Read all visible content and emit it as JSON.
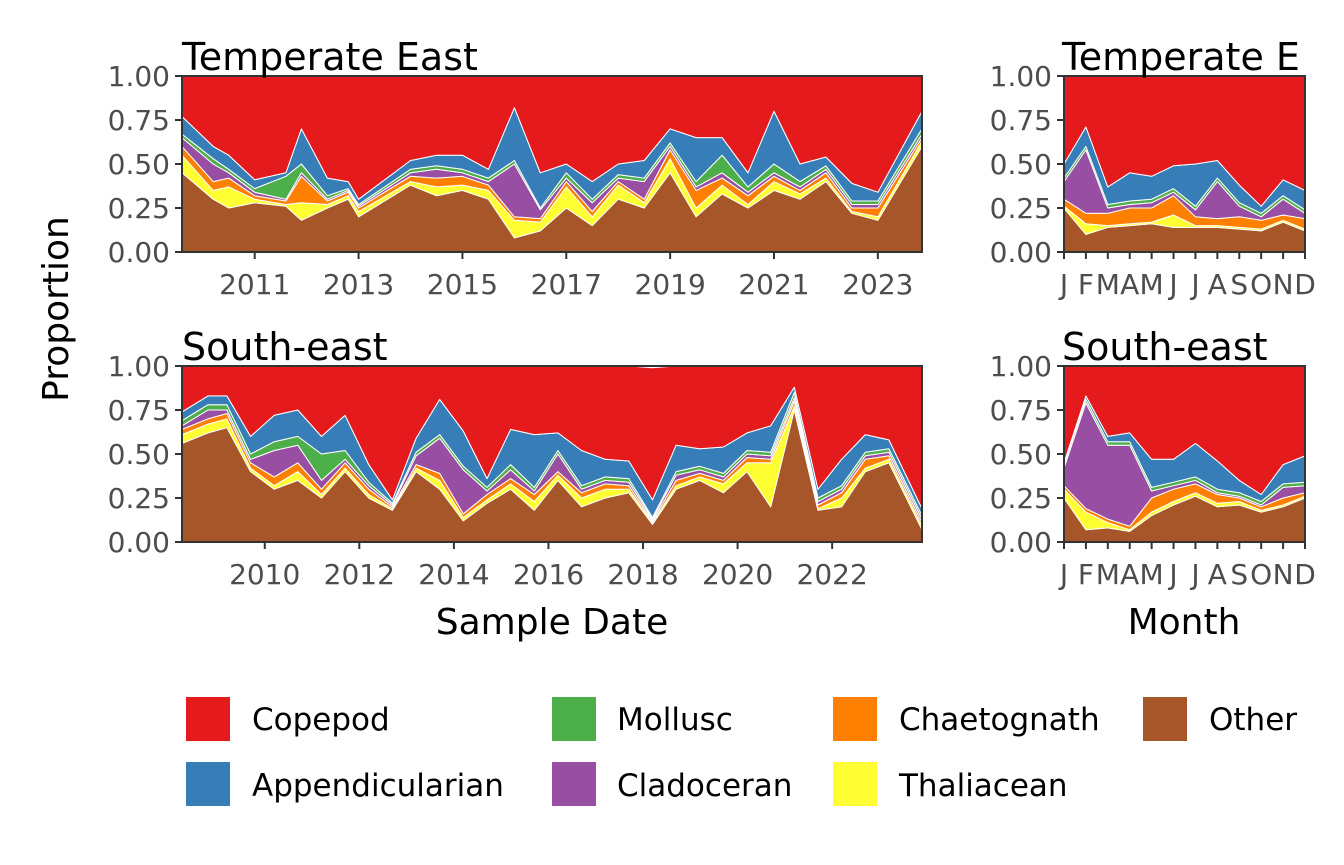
{
  "ylabel": "Proportion",
  "layers": [
    "Other",
    "Thaliacean",
    "Chaetognath",
    "Cladoceran",
    "Mollusc",
    "Appendicularian",
    "Copepod"
  ],
  "colors": {
    "Copepod": "#E41A1C",
    "Appendicularian": "#377EB8",
    "Mollusc": "#4DAF4A",
    "Cladoceran": "#984EA3",
    "Chaetognath": "#FF7F00",
    "Thaliacean": "#FFFF33",
    "Other": "#A65628"
  },
  "legend": {
    "items": [
      {
        "name": "Copepod",
        "color": "#E41A1C"
      },
      {
        "name": "Mollusc",
        "color": "#4DAF4A"
      },
      {
        "name": "Chaetognath",
        "color": "#FF7F00"
      },
      {
        "name": "Other",
        "color": "#A65628"
      },
      {
        "name": "Appendicularian",
        "color": "#377EB8"
      },
      {
        "name": "Cladoceran",
        "color": "#984EA3"
      },
      {
        "name": "Thaliacean",
        "color": "#FFFF33"
      }
    ]
  },
  "chart_data": [
    {
      "type": "area",
      "title": "Temperate East",
      "xlabel": "",
      "ylabel": "Proportion",
      "xlim": [
        2009.6,
        2023.85
      ],
      "ylim": [
        0,
        1
      ],
      "xticks": [
        2011,
        2013,
        2015,
        2017,
        2019,
        2021,
        2023
      ],
      "xtick_labels": [
        "2011",
        "2013",
        "2015",
        "2017",
        "2019",
        "2021",
        "2023"
      ],
      "yticks": [
        "0.00",
        "0.25",
        "0.50",
        "0.75",
        "1.00"
      ],
      "stack_order": [
        "Other",
        "Thaliacean",
        "Chaetognath",
        "Cladoceran",
        "Mollusc",
        "Appendicularian",
        "Copepod"
      ],
      "x": [
        2009.6,
        2010.2,
        2010.5,
        2011.0,
        2011.6,
        2011.9,
        2012.4,
        2012.8,
        2013.0,
        2014.0,
        2014.5,
        2015.0,
        2015.5,
        2016.0,
        2016.5,
        2017.0,
        2017.5,
        2018.0,
        2018.5,
        2019.0,
        2019.5,
        2020.0,
        2020.5,
        2021.0,
        2021.5,
        2022.0,
        2022.5,
        2023.0,
        2023.85
      ],
      "series": [
        {
          "name": "Other",
          "values": [
            0.45,
            0.3,
            0.25,
            0.28,
            0.26,
            0.18,
            0.25,
            0.3,
            0.2,
            0.38,
            0.32,
            0.35,
            0.3,
            0.08,
            0.12,
            0.25,
            0.15,
            0.3,
            0.25,
            0.45,
            0.2,
            0.33,
            0.25,
            0.35,
            0.3,
            0.4,
            0.22,
            0.18,
            0.6
          ]
        },
        {
          "name": "Thaliacean",
          "values": [
            0.1,
            0.05,
            0.12,
            0.02,
            0.01,
            0.1,
            0.02,
            0.02,
            0.03,
            0.02,
            0.05,
            0.03,
            0.05,
            0.1,
            0.05,
            0.12,
            0.05,
            0.08,
            0.03,
            0.08,
            0.05,
            0.05,
            0.02,
            0.05,
            0.03,
            0.02,
            0.01,
            0.02,
            0.03
          ]
        },
        {
          "name": "Chaetognath",
          "values": [
            0.05,
            0.05,
            0.05,
            0.02,
            0.02,
            0.15,
            0.02,
            0.02,
            0.02,
            0.03,
            0.05,
            0.05,
            0.03,
            0.02,
            0.02,
            0.03,
            0.03,
            0.02,
            0.02,
            0.05,
            0.1,
            0.04,
            0.05,
            0.03,
            0.02,
            0.03,
            0.02,
            0.05,
            0.02
          ]
        },
        {
          "name": "Cladoceran",
          "values": [
            0.05,
            0.1,
            0.03,
            0.02,
            0.01,
            0.02,
            0.01,
            0.01,
            0.01,
            0.02,
            0.05,
            0.02,
            0.02,
            0.3,
            0.05,
            0.02,
            0.05,
            0.02,
            0.1,
            0.02,
            0.02,
            0.03,
            0.02,
            0.02,
            0.02,
            0.02,
            0.02,
            0.02,
            0.02
          ]
        },
        {
          "name": "Mollusc",
          "values": [
            0.02,
            0.03,
            0.02,
            0.02,
            0.13,
            0.05,
            0.02,
            0.01,
            0.01,
            0.02,
            0.02,
            0.02,
            0.02,
            0.02,
            0.01,
            0.03,
            0.02,
            0.02,
            0.02,
            0.02,
            0.03,
            0.1,
            0.03,
            0.05,
            0.03,
            0.02,
            0.02,
            0.02,
            0.03
          ]
        },
        {
          "name": "Appendicularian",
          "values": [
            0.1,
            0.07,
            0.08,
            0.05,
            0.02,
            0.2,
            0.1,
            0.04,
            0.03,
            0.05,
            0.06,
            0.08,
            0.05,
            0.3,
            0.2,
            0.05,
            0.1,
            0.06,
            0.1,
            0.08,
            0.25,
            0.1,
            0.08,
            0.3,
            0.1,
            0.05,
            0.1,
            0.05,
            0.1
          ]
        },
        {
          "name": "Copepod",
          "values": [
            0.23,
            0.4,
            0.45,
            0.59,
            0.55,
            0.3,
            0.58,
            0.6,
            0.7,
            0.48,
            0.45,
            0.45,
            0.53,
            0.18,
            0.55,
            0.5,
            0.6,
            0.5,
            0.48,
            0.3,
            0.35,
            0.35,
            0.55,
            0.2,
            0.5,
            0.46,
            0.61,
            0.66,
            0.2
          ]
        }
      ]
    },
    {
      "type": "area",
      "title": "Temperate E",
      "xlabel": "",
      "ylabel": "Proportion",
      "xlim": [
        1,
        12
      ],
      "ylim": [
        0,
        1
      ],
      "xticks": [
        1,
        2,
        3,
        4,
        5,
        6,
        7,
        8,
        9,
        10,
        11,
        12
      ],
      "xtick_labels": [
        "J",
        "F",
        "M",
        "A",
        "M",
        "J",
        "J",
        "A",
        "S",
        "O",
        "N",
        "D"
      ],
      "yticks": [
        "0.00",
        "0.25",
        "0.50",
        "0.75",
        "1.00"
      ],
      "stack_order": [
        "Other",
        "Thaliacean",
        "Chaetognath",
        "Cladoceran",
        "Mollusc",
        "Appendicularian",
        "Copepod"
      ],
      "x": [
        1,
        2,
        3,
        4,
        5,
        6,
        7,
        8,
        9,
        10,
        11,
        12
      ],
      "series": [
        {
          "name": "Other",
          "values": [
            0.25,
            0.1,
            0.14,
            0.15,
            0.16,
            0.14,
            0.14,
            0.14,
            0.13,
            0.12,
            0.17,
            0.12
          ]
        },
        {
          "name": "Thaliacean",
          "values": [
            0.01,
            0.06,
            0.01,
            0.01,
            0.01,
            0.07,
            0.01,
            0.01,
            0.01,
            0.01,
            0.01,
            0.01
          ]
        },
        {
          "name": "Chaetognath",
          "values": [
            0.04,
            0.06,
            0.07,
            0.09,
            0.08,
            0.11,
            0.05,
            0.04,
            0.06,
            0.05,
            0.03,
            0.06
          ]
        },
        {
          "name": "Cladoceran",
          "values": [
            0.1,
            0.36,
            0.03,
            0.02,
            0.03,
            0.02,
            0.04,
            0.21,
            0.06,
            0.02,
            0.09,
            0.03
          ]
        },
        {
          "name": "Mollusc",
          "values": [
            0.02,
            0.02,
            0.02,
            0.02,
            0.02,
            0.02,
            0.02,
            0.02,
            0.02,
            0.02,
            0.02,
            0.02
          ]
        },
        {
          "name": "Appendicularian",
          "values": [
            0.08,
            0.11,
            0.1,
            0.16,
            0.13,
            0.13,
            0.24,
            0.1,
            0.1,
            0.04,
            0.09,
            0.11
          ]
        },
        {
          "name": "Copepod",
          "values": [
            0.5,
            0.29,
            0.63,
            0.55,
            0.57,
            0.51,
            0.5,
            0.48,
            0.62,
            0.74,
            0.59,
            0.65
          ]
        }
      ]
    },
    {
      "type": "area",
      "title": "South-east",
      "xlabel": "Sample Date",
      "ylabel": "Proportion",
      "xlim": [
        2008.25,
        2023.9
      ],
      "ylim": [
        0,
        1
      ],
      "xticks": [
        2010,
        2012,
        2014,
        2016,
        2018,
        2020,
        2022
      ],
      "xtick_labels": [
        "2010",
        "2012",
        "2014",
        "2016",
        "2018",
        "2020",
        "2022"
      ],
      "yticks": [
        "0.00",
        "0.25",
        "0.50",
        "0.75",
        "1.00"
      ],
      "stack_order": [
        "Other",
        "Thaliacean",
        "Chaetognath",
        "Cladoceran",
        "Mollusc",
        "Appendicularian",
        "Copepod"
      ],
      "x": [
        2008.25,
        2008.8,
        2009.2,
        2009.7,
        2010.2,
        2010.7,
        2011.2,
        2011.7,
        2012.2,
        2012.7,
        2013.2,
        2013.7,
        2014.2,
        2014.7,
        2015.2,
        2015.7,
        2016.2,
        2016.7,
        2017.2,
        2017.7,
        2018.2,
        2018.7,
        2019.2,
        2019.7,
        2020.2,
        2020.7,
        2021.2,
        2021.7,
        2022.2,
        2022.7,
        2023.2,
        2023.9
      ],
      "series": [
        {
          "name": "Other",
          "values": [
            0.56,
            0.62,
            0.65,
            0.4,
            0.3,
            0.35,
            0.25,
            0.4,
            0.25,
            0.18,
            0.4,
            0.3,
            0.12,
            0.22,
            0.3,
            0.18,
            0.35,
            0.2,
            0.25,
            0.28,
            0.1,
            0.3,
            0.35,
            0.28,
            0.4,
            0.2,
            0.75,
            0.18,
            0.2,
            0.4,
            0.45,
            0.07
          ]
        },
        {
          "name": "Thaliacean",
          "values": [
            0.05,
            0.05,
            0.05,
            0.02,
            0.02,
            0.05,
            0.02,
            0.02,
            0.02,
            0.01,
            0.02,
            0.05,
            0.02,
            0.02,
            0.03,
            0.05,
            0.03,
            0.05,
            0.05,
            0.02,
            0.01,
            0.02,
            0.02,
            0.05,
            0.05,
            0.25,
            0.02,
            0.01,
            0.05,
            0.02,
            0.02,
            0.02
          ]
        },
        {
          "name": "Chaetognath",
          "values": [
            0.03,
            0.03,
            0.03,
            0.03,
            0.05,
            0.05,
            0.03,
            0.03,
            0.03,
            0.01,
            0.02,
            0.04,
            0.02,
            0.03,
            0.03,
            0.04,
            0.02,
            0.03,
            0.03,
            0.02,
            0.01,
            0.03,
            0.02,
            0.02,
            0.03,
            0.02,
            0.03,
            0.02,
            0.03,
            0.05,
            0.02,
            0.02
          ]
        },
        {
          "name": "Cladoceran",
          "values": [
            0.02,
            0.05,
            0.02,
            0.02,
            0.15,
            0.1,
            0.05,
            0.02,
            0.02,
            0.01,
            0.05,
            0.2,
            0.25,
            0.02,
            0.05,
            0.02,
            0.1,
            0.02,
            0.02,
            0.02,
            0.01,
            0.03,
            0.02,
            0.02,
            0.02,
            0.02,
            0.02,
            0.02,
            0.02,
            0.02,
            0.02,
            0.02
          ]
        },
        {
          "name": "Mollusc",
          "values": [
            0.03,
            0.03,
            0.03,
            0.03,
            0.05,
            0.05,
            0.15,
            0.05,
            0.02,
            0.01,
            0.02,
            0.02,
            0.02,
            0.02,
            0.03,
            0.02,
            0.02,
            0.02,
            0.02,
            0.02,
            0.01,
            0.02,
            0.02,
            0.02,
            0.02,
            0.02,
            0.03,
            0.02,
            0.02,
            0.02,
            0.02,
            0.02
          ]
        },
        {
          "name": "Appendicularian",
          "values": [
            0.05,
            0.05,
            0.05,
            0.1,
            0.15,
            0.15,
            0.1,
            0.2,
            0.1,
            0.02,
            0.08,
            0.2,
            0.2,
            0.05,
            0.2,
            0.3,
            0.1,
            0.2,
            0.1,
            0.1,
            0.1,
            0.15,
            0.1,
            0.15,
            0.1,
            0.15,
            0.03,
            0.05,
            0.15,
            0.1,
            0.05,
            0.04
          ]
        },
        {
          "name": "Copepod",
          "values": [
            0.26,
            0.17,
            0.17,
            0.4,
            0.28,
            0.25,
            0.4,
            0.28,
            0.56,
            0.76,
            0.41,
            0.19,
            0.37,
            0.64,
            0.36,
            0.39,
            0.38,
            0.48,
            0.53,
            0.54,
            0.75,
            0.45,
            0.47,
            0.46,
            0.38,
            0.34,
            0.12,
            0.7,
            0.53,
            0.39,
            0.42,
            0.81
          ]
        }
      ]
    },
    {
      "type": "area",
      "title": "South-east",
      "xlabel": "Month",
      "ylabel": "Proportion",
      "xlim": [
        1,
        12
      ],
      "ylim": [
        0,
        1
      ],
      "xticks": [
        1,
        2,
        3,
        4,
        5,
        6,
        7,
        8,
        9,
        10,
        11,
        12
      ],
      "xtick_labels": [
        "J",
        "F",
        "M",
        "A",
        "M",
        "J",
        "J",
        "A",
        "S",
        "O",
        "N",
        "D"
      ],
      "yticks": [
        "0.00",
        "0.25",
        "0.50",
        "0.75",
        "1.00"
      ],
      "stack_order": [
        "Other",
        "Thaliacean",
        "Chaetognath",
        "Cladoceran",
        "Mollusc",
        "Appendicularian",
        "Copepod"
      ],
      "x": [
        1,
        2,
        3,
        4,
        5,
        6,
        7,
        8,
        9,
        10,
        11,
        12
      ],
      "series": [
        {
          "name": "Other",
          "values": [
            0.25,
            0.07,
            0.08,
            0.06,
            0.15,
            0.21,
            0.26,
            0.2,
            0.21,
            0.17,
            0.2,
            0.25
          ]
        },
        {
          "name": "Thaliacean",
          "values": [
            0.05,
            0.1,
            0.03,
            0.01,
            0.02,
            0.02,
            0.02,
            0.02,
            0.02,
            0.01,
            0.01,
            0.01
          ]
        },
        {
          "name": "Chaetognath",
          "values": [
            0.02,
            0.02,
            0.02,
            0.02,
            0.08,
            0.07,
            0.05,
            0.05,
            0.02,
            0.02,
            0.04,
            0.02
          ]
        },
        {
          "name": "Cladoceran",
          "values": [
            0.1,
            0.6,
            0.42,
            0.46,
            0.04,
            0.02,
            0.02,
            0.01,
            0.01,
            0.01,
            0.06,
            0.04
          ]
        },
        {
          "name": "Mollusc",
          "values": [
            0.02,
            0.02,
            0.02,
            0.02,
            0.02,
            0.02,
            0.02,
            0.02,
            0.02,
            0.02,
            0.02,
            0.02
          ]
        },
        {
          "name": "Appendicularian",
          "values": [
            0.01,
            0.02,
            0.03,
            0.05,
            0.16,
            0.13,
            0.19,
            0.16,
            0.07,
            0.04,
            0.11,
            0.15
          ]
        },
        {
          "name": "Copepod",
          "values": [
            0.55,
            0.17,
            0.4,
            0.38,
            0.53,
            0.53,
            0.44,
            0.54,
            0.65,
            0.73,
            0.56,
            0.51
          ]
        }
      ]
    }
  ]
}
